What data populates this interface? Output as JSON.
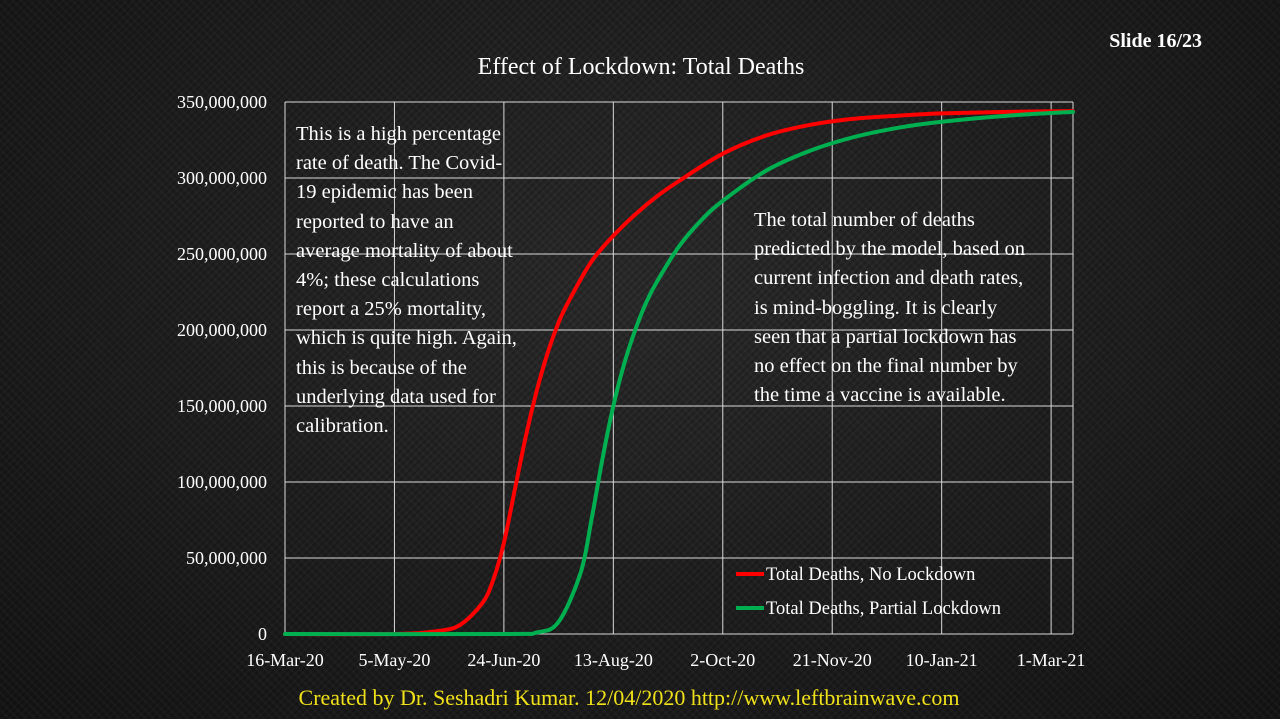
{
  "slide": {
    "number_label": "Slide 16/23"
  },
  "footer": {
    "credit": "Created by Dr. Seshadri Kumar. 12/04/2020 http://www.leftbrainwave.com"
  },
  "annotations": {
    "left": "This is a high percentage rate of death. The Covid-19 epidemic has been reported to have an average mortality of about 4%; these calculations report a 25% mortality, which is quite high. Again, this is because of the underlying data used for calibration.",
    "right": "The total number of deaths predicted by the model, based on current infection and death rates, is mind-boggling. It is clearly seen that a partial lockdown has no effect on the final number by the time a vaccine is available."
  },
  "chart_data": {
    "type": "line",
    "title": "Effect of Lockdown: Total Deaths",
    "xlabel": "",
    "ylabel": "",
    "x_axis": {
      "type": "date",
      "min": "2020-03-16",
      "max": "2021-03-11"
    },
    "ylim": [
      0,
      350000000
    ],
    "grid": true,
    "legend_position": "bottom-right",
    "x_tick_labels": [
      "16-Mar-20",
      "5-May-20",
      "24-Jun-20",
      "13-Aug-20",
      "2-Oct-20",
      "21-Nov-20",
      "10-Jan-21",
      "1-Mar-21"
    ],
    "y_tick_labels": [
      "0",
      "50,000,000",
      "100,000,000",
      "150,000,000",
      "200,000,000",
      "250,000,000",
      "300,000,000",
      "350,000,000"
    ],
    "y_tick_values": [
      0,
      50000000,
      100000000,
      150000000,
      200000000,
      250000000,
      300000000,
      350000000
    ],
    "series": [
      {
        "name": "Total Deaths, No Lockdown",
        "color": "#ff0000",
        "x": [
          "2020-03-16",
          "2020-05-05",
          "2020-05-25",
          "2020-06-04",
          "2020-06-14",
          "2020-06-19",
          "2020-06-24",
          "2020-06-29",
          "2020-07-04",
          "2020-07-09",
          "2020-07-14",
          "2020-07-19",
          "2020-07-24",
          "2020-08-03",
          "2020-08-13",
          "2020-08-23",
          "2020-09-02",
          "2020-09-12",
          "2020-10-02",
          "2020-10-22",
          "2020-11-11",
          "2020-12-01",
          "2020-12-21",
          "2021-01-10",
          "2021-02-09",
          "2021-03-11"
        ],
        "y": [
          0,
          0,
          2000000,
          6000000,
          20000000,
          35000000,
          60000000,
          95000000,
          130000000,
          160000000,
          185000000,
          205000000,
          220000000,
          245000000,
          262000000,
          276000000,
          288000000,
          298000000,
          316000000,
          328000000,
          335000000,
          339000000,
          341000000,
          342500000,
          343500000,
          344000000
        ]
      },
      {
        "name": "Total Deaths, Partial Lockdown",
        "color": "#00b050",
        "x": [
          "2020-03-16",
          "2020-06-24",
          "2020-07-09",
          "2020-07-19",
          "2020-07-29",
          "2020-08-03",
          "2020-08-08",
          "2020-08-13",
          "2020-08-18",
          "2020-08-23",
          "2020-08-28",
          "2020-09-02",
          "2020-09-12",
          "2020-09-22",
          "2020-10-02",
          "2020-10-22",
          "2020-11-11",
          "2020-12-01",
          "2020-12-21",
          "2021-01-10",
          "2021-02-09",
          "2021-03-11"
        ],
        "y": [
          0,
          0,
          1000000,
          8000000,
          40000000,
          75000000,
          115000000,
          150000000,
          178000000,
          200000000,
          218000000,
          232000000,
          255000000,
          272000000,
          285000000,
          305000000,
          318000000,
          327000000,
          333000000,
          337000000,
          341000000,
          343500000
        ]
      }
    ]
  }
}
